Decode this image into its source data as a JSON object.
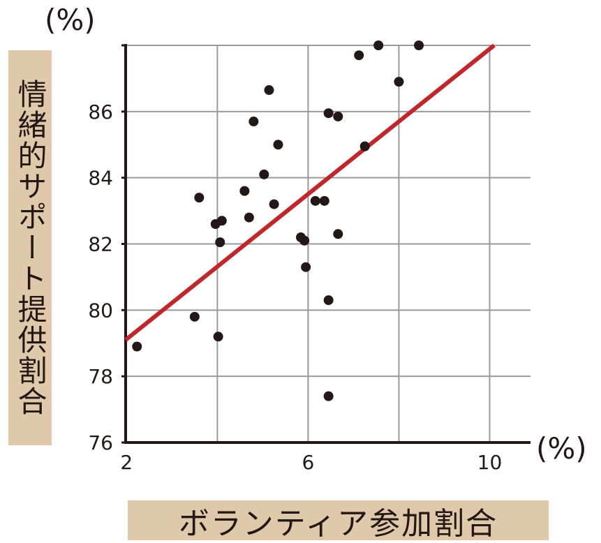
{
  "y_unit": "(%)",
  "x_unit": "(%)",
  "ylabel": "情緒的サポート提供割合",
  "xlabel": "ボランティア参加割合",
  "colors": {
    "points": "#231815",
    "trend": "#c0272d",
    "grid": "#9a9a9a",
    "label_bg": "#dfc9aa"
  },
  "chart_data": {
    "type": "scatter",
    "xlabel": "ボランティア参加割合",
    "ylabel": "情緒的サポート提供割合",
    "xlim": [
      1.98,
      10.9
    ],
    "ylim": [
      76,
      88
    ],
    "xticks": [
      2,
      6,
      10
    ],
    "yticks": [
      76,
      78,
      80,
      82,
      84,
      86
    ],
    "grid": true,
    "points": [
      {
        "x": 2.23,
        "y": 78.9
      },
      {
        "x": 3.5,
        "y": 79.8
      },
      {
        "x": 3.6,
        "y": 83.4
      },
      {
        "x": 3.96,
        "y": 82.6
      },
      {
        "x": 4.02,
        "y": 79.2
      },
      {
        "x": 4.06,
        "y": 82.05
      },
      {
        "x": 4.1,
        "y": 82.7
      },
      {
        "x": 4.6,
        "y": 83.6
      },
      {
        "x": 4.7,
        "y": 82.8
      },
      {
        "x": 4.8,
        "y": 85.7
      },
      {
        "x": 5.03,
        "y": 84.1
      },
      {
        "x": 5.14,
        "y": 86.65
      },
      {
        "x": 5.25,
        "y": 83.2
      },
      {
        "x": 5.34,
        "y": 85.0
      },
      {
        "x": 5.84,
        "y": 82.2
      },
      {
        "x": 5.92,
        "y": 82.1
      },
      {
        "x": 5.95,
        "y": 81.3
      },
      {
        "x": 6.16,
        "y": 83.3
      },
      {
        "x": 6.36,
        "y": 83.3
      },
      {
        "x": 6.45,
        "y": 80.3
      },
      {
        "x": 6.45,
        "y": 77.4
      },
      {
        "x": 6.45,
        "y": 85.95
      },
      {
        "x": 6.66,
        "y": 85.85
      },
      {
        "x": 6.66,
        "y": 82.3
      },
      {
        "x": 7.25,
        "y": 84.95
      },
      {
        "x": 7.12,
        "y": 87.7
      },
      {
        "x": 7.55,
        "y": 88.0
      },
      {
        "x": 8.0,
        "y": 86.9
      },
      {
        "x": 8.44,
        "y": 88.0
      }
    ],
    "trendline": [
      {
        "x": 1.98,
        "y": 79.1
      },
      {
        "x": 10.1,
        "y": 88.0
      }
    ]
  }
}
